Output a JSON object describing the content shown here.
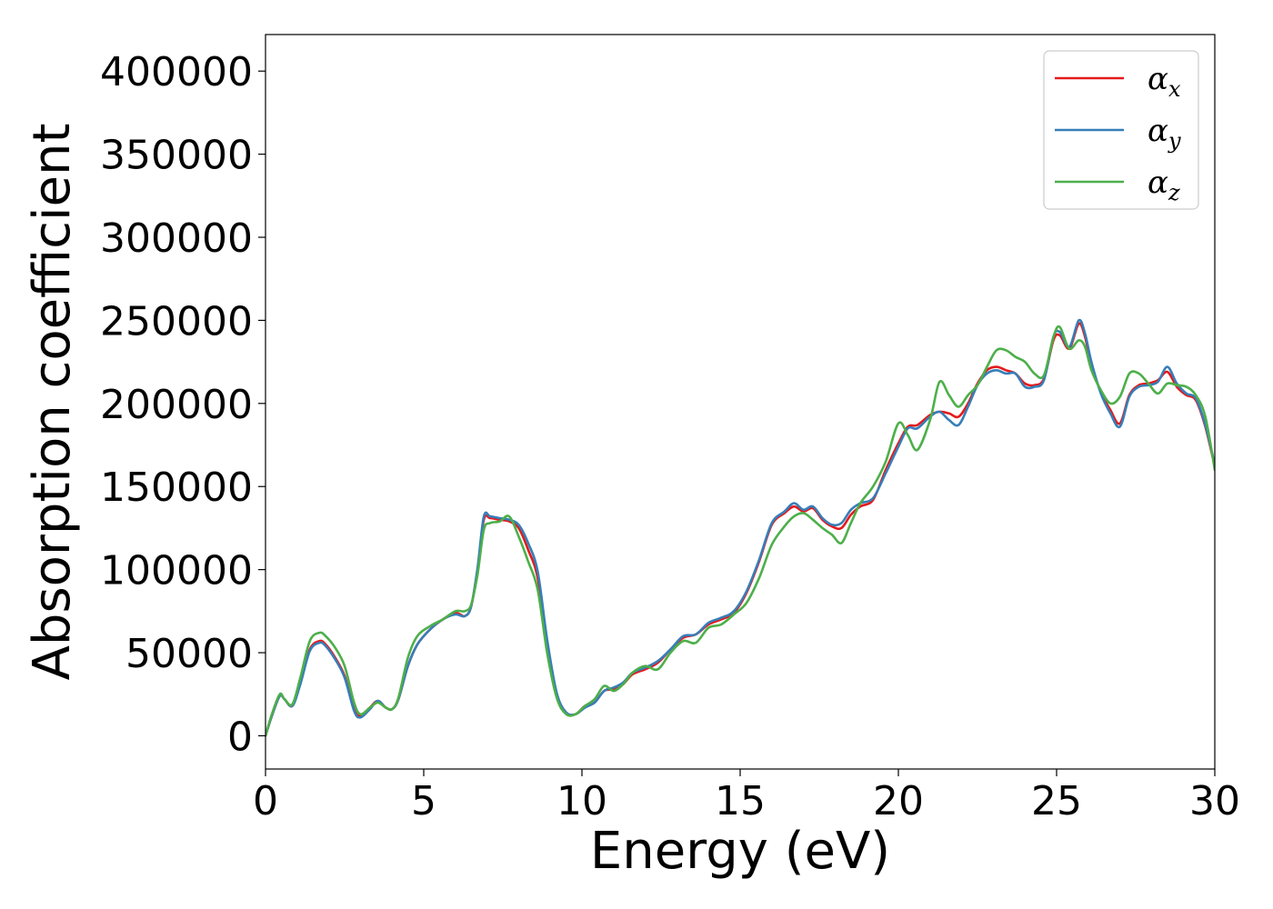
{
  "chart_data": {
    "type": "line",
    "xlabel": "Energy (eV)",
    "ylabel": "Absorption coefficient",
    "xlim": [
      0,
      30
    ],
    "ylim": [
      -20000,
      422000
    ],
    "xticks": [
      0,
      5,
      10,
      15,
      20,
      25,
      30
    ],
    "yticks": [
      0,
      50000,
      100000,
      150000,
      200000,
      250000,
      300000,
      350000,
      400000
    ],
    "xtick_labels": [
      "0",
      "5",
      "10",
      "15",
      "20",
      "25",
      "30"
    ],
    "ytick_labels": [
      "0",
      "50000",
      "100000",
      "150000",
      "200000",
      "250000",
      "300000",
      "350000",
      "400000"
    ],
    "grid": false,
    "legend_position": "top-right",
    "series": [
      {
        "name": "αx",
        "legend_base": "α",
        "legend_sub": "x",
        "color": "#e41a1c",
        "x": [
          0,
          0.2,
          0.45,
          0.6,
          0.85,
          1.1,
          1.4,
          1.7,
          1.9,
          2.2,
          2.5,
          2.8,
          3.0,
          3.3,
          3.55,
          3.8,
          4.0,
          4.2,
          4.5,
          4.8,
          5.2,
          5.6,
          6.0,
          6.3,
          6.5,
          6.7,
          6.9,
          7.1,
          7.4,
          7.7,
          8.0,
          8.3,
          8.6,
          8.9,
          9.2,
          9.5,
          9.8,
          10.1,
          10.4,
          10.7,
          11.0,
          11.3,
          11.6,
          12.0,
          12.4,
          12.8,
          13.2,
          13.6,
          14.0,
          14.4,
          14.8,
          15.2,
          15.6,
          16.0,
          16.4,
          16.7,
          17.0,
          17.3,
          17.6,
          17.9,
          18.2,
          18.5,
          18.8,
          19.2,
          19.6,
          20.0,
          20.3,
          20.6,
          21.0,
          21.3,
          21.6,
          21.9,
          22.2,
          22.5,
          22.8,
          23.1,
          23.4,
          23.7,
          24.0,
          24.3,
          24.6,
          24.9,
          25.1,
          25.4,
          25.7,
          25.9,
          26.1,
          26.4,
          26.7,
          27.0,
          27.3,
          27.6,
          27.9,
          28.2,
          28.5,
          28.8,
          29.1,
          29.4,
          29.7,
          30.0
        ],
        "y": [
          0,
          12000,
          24000,
          22000,
          18000,
          32000,
          52000,
          57000,
          55000,
          47000,
          36000,
          16000,
          12000,
          17000,
          21000,
          17000,
          16000,
          22000,
          42000,
          55000,
          64000,
          70000,
          74000,
          72000,
          78000,
          100000,
          130000,
          131000,
          130000,
          129000,
          125000,
          112000,
          95000,
          55000,
          25000,
          14000,
          13000,
          18000,
          20000,
          27000,
          28000,
          31000,
          37000,
          40000,
          44000,
          52000,
          59000,
          61000,
          67000,
          70000,
          74000,
          86000,
          105000,
          127000,
          134000,
          138000,
          135000,
          137000,
          130000,
          126000,
          125000,
          133000,
          138000,
          142000,
          160000,
          176000,
          186000,
          187000,
          193000,
          195000,
          194000,
          192000,
          200000,
          212000,
          220000,
          222000,
          220000,
          218000,
          212000,
          211000,
          215000,
          238000,
          241000,
          233000,
          248000,
          240000,
          223000,
          207000,
          196000,
          188000,
          205000,
          211000,
          212000,
          214000,
          219000,
          210000,
          205000,
          202000,
          186000,
          162000
        ]
      },
      {
        "name": "αy",
        "legend_base": "α",
        "legend_sub": "y",
        "color": "#377eb8",
        "x": [
          0,
          0.2,
          0.45,
          0.6,
          0.85,
          1.1,
          1.4,
          1.7,
          1.9,
          2.2,
          2.5,
          2.8,
          3.0,
          3.3,
          3.55,
          3.8,
          4.0,
          4.2,
          4.5,
          4.8,
          5.2,
          5.6,
          6.0,
          6.3,
          6.5,
          6.7,
          6.9,
          7.1,
          7.4,
          7.7,
          8.0,
          8.3,
          8.6,
          8.9,
          9.2,
          9.5,
          9.8,
          10.1,
          10.4,
          10.7,
          11.0,
          11.3,
          11.6,
          12.0,
          12.4,
          12.8,
          13.2,
          13.6,
          14.0,
          14.4,
          14.8,
          15.2,
          15.6,
          16.0,
          16.4,
          16.7,
          17.0,
          17.3,
          17.6,
          17.9,
          18.2,
          18.5,
          18.8,
          19.2,
          19.6,
          20.0,
          20.3,
          20.6,
          21.0,
          21.3,
          21.6,
          21.9,
          22.2,
          22.5,
          22.8,
          23.1,
          23.4,
          23.7,
          24.0,
          24.3,
          24.6,
          24.9,
          25.1,
          25.4,
          25.7,
          25.9,
          26.1,
          26.4,
          26.7,
          27.0,
          27.3,
          27.6,
          27.9,
          28.2,
          28.5,
          28.8,
          29.1,
          29.4,
          29.7,
          30.0
        ],
        "y": [
          0,
          12000,
          24000,
          22000,
          18000,
          31000,
          51000,
          56000,
          54000,
          46000,
          35000,
          15000,
          11000,
          16000,
          21000,
          17000,
          16000,
          22000,
          42000,
          55000,
          64000,
          70000,
          73000,
          72000,
          78000,
          101000,
          132000,
          132000,
          131000,
          130000,
          127000,
          116000,
          99000,
          58000,
          26000,
          14000,
          13000,
          17000,
          20000,
          27000,
          29000,
          32000,
          38000,
          41000,
          45000,
          52000,
          60000,
          61000,
          68000,
          71000,
          75000,
          87000,
          106000,
          128000,
          135000,
          140000,
          136000,
          138000,
          131000,
          127000,
          128000,
          136000,
          140000,
          143000,
          158000,
          174000,
          185000,
          185000,
          192000,
          195000,
          190000,
          187000,
          198000,
          211000,
          218000,
          220000,
          218000,
          218000,
          210000,
          210000,
          214000,
          240000,
          243000,
          234000,
          250000,
          242000,
          225000,
          206000,
          194000,
          186000,
          204000,
          210000,
          211000,
          213000,
          222000,
          212000,
          206000,
          203000,
          187000,
          163000
        ]
      },
      {
        "name": "αz",
        "legend_base": "α",
        "legend_sub": "z",
        "color": "#4daf4a",
        "x": [
          0,
          0.2,
          0.45,
          0.6,
          0.85,
          1.1,
          1.4,
          1.7,
          1.9,
          2.2,
          2.5,
          2.8,
          3.0,
          3.3,
          3.55,
          3.8,
          4.0,
          4.2,
          4.5,
          4.8,
          5.2,
          5.6,
          6.0,
          6.3,
          6.5,
          6.7,
          6.9,
          7.1,
          7.4,
          7.7,
          8.0,
          8.3,
          8.6,
          8.9,
          9.2,
          9.5,
          9.8,
          10.1,
          10.4,
          10.7,
          11.0,
          11.3,
          11.6,
          12.0,
          12.4,
          12.8,
          13.2,
          13.6,
          14.0,
          14.4,
          14.8,
          15.2,
          15.6,
          16.0,
          16.4,
          16.7,
          17.0,
          17.3,
          17.6,
          17.9,
          18.2,
          18.5,
          18.8,
          19.2,
          19.6,
          20.0,
          20.3,
          20.6,
          21.0,
          21.3,
          21.6,
          21.9,
          22.2,
          22.5,
          22.8,
          23.1,
          23.4,
          23.7,
          24.0,
          24.3,
          24.6,
          24.9,
          25.1,
          25.4,
          25.7,
          25.9,
          26.1,
          26.4,
          26.7,
          27.0,
          27.3,
          27.6,
          27.9,
          28.2,
          28.5,
          28.8,
          29.1,
          29.4,
          29.7,
          30.0
        ],
        "y": [
          0,
          13000,
          25000,
          22000,
          19000,
          35000,
          57000,
          62000,
          60000,
          53000,
          42000,
          20000,
          13000,
          17000,
          20000,
          17000,
          16000,
          23000,
          47000,
          60000,
          66000,
          70000,
          75000,
          75000,
          79000,
          97000,
          124000,
          128000,
          129000,
          132000,
          120000,
          105000,
          88000,
          50000,
          23000,
          13000,
          13000,
          18000,
          22000,
          30000,
          27000,
          31000,
          38000,
          42000,
          40000,
          50000,
          57000,
          56000,
          65000,
          67000,
          73000,
          80000,
          95000,
          115000,
          126000,
          132000,
          134000,
          130000,
          125000,
          121000,
          116000,
          128000,
          140000,
          150000,
          165000,
          188000,
          181000,
          172000,
          190000,
          213000,
          205000,
          198000,
          205000,
          211000,
          222000,
          232000,
          232000,
          228000,
          225000,
          218000,
          217000,
          240000,
          246000,
          233000,
          238000,
          234000,
          220000,
          208000,
          200000,
          204000,
          218000,
          218000,
          212000,
          206000,
          212000,
          211000,
          210000,
          205000,
          192000,
          160000
        ]
      }
    ]
  }
}
